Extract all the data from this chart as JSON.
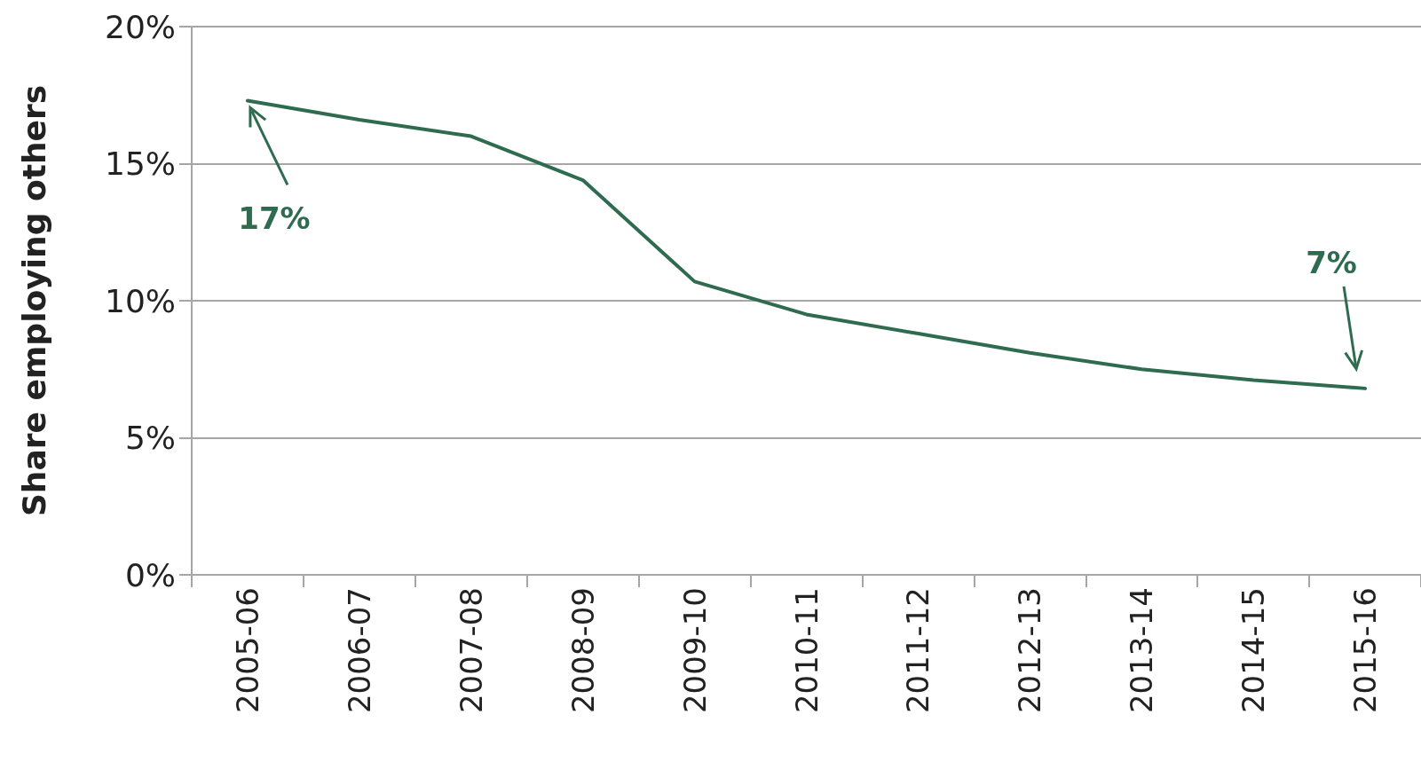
{
  "chart_data": {
    "type": "line",
    "ylabel": "Share employing others",
    "categories": [
      "2005-06",
      "2006-07",
      "2007-08",
      "2008-09",
      "2009-10",
      "2010-11",
      "2011-12",
      "2012-13",
      "2013-14",
      "2014-15",
      "2015-16"
    ],
    "series": [
      {
        "color": "#2e6b4f",
        "values": [
          17.3,
          16.6,
          16.0,
          14.4,
          10.7,
          9.5,
          8.8,
          8.1,
          7.5,
          7.1,
          6.8
        ]
      }
    ],
    "ylim": [
      0,
      20
    ],
    "yticks": [
      {
        "value": 0,
        "label": "0%"
      },
      {
        "value": 5,
        "label": "5%"
      },
      {
        "value": 10,
        "label": "10%"
      },
      {
        "value": 15,
        "label": "15%"
      },
      {
        "value": 20,
        "label": "20%"
      }
    ],
    "grid": "y",
    "marker": "none",
    "line_style": "solid",
    "annotations": [
      "17%",
      "7%"
    ]
  }
}
